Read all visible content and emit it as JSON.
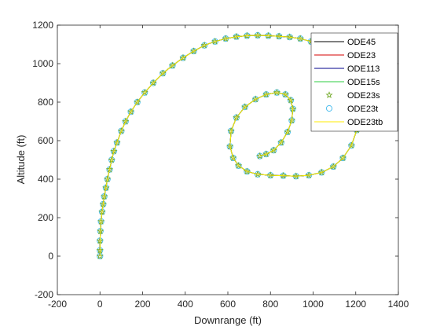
{
  "chart_data": {
    "type": "line",
    "title": "",
    "xlabel": "Downrange (ft)",
    "ylabel": "Altitude (ft)",
    "xlim": [
      -200,
      1400
    ],
    "ylim": [
      -200,
      1200
    ],
    "xticks": [
      "-200",
      "0",
      "200",
      "400",
      "600",
      "800",
      "1000",
      "1200",
      "1400"
    ],
    "yticks": [
      "-200",
      "0",
      "200",
      "400",
      "600",
      "800",
      "1000",
      "1200"
    ],
    "grid": false,
    "legend_position": "top-right",
    "x": [
      0,
      0,
      0,
      2,
      5,
      10,
      15,
      20,
      28,
      35,
      45,
      55,
      65,
      80,
      100,
      120,
      145,
      175,
      210,
      250,
      295,
      340,
      390,
      440,
      490,
      540,
      590,
      640,
      690,
      740,
      790,
      840,
      890,
      940,
      990,
      1040,
      1090,
      1140,
      1180,
      1210,
      1215,
      1205,
      1180,
      1140,
      1095,
      1040,
      980,
      920,
      860,
      800,
      740,
      690,
      650,
      625,
      610,
      615,
      640,
      680,
      730,
      780,
      830,
      870,
      895,
      905,
      900,
      880,
      850,
      815,
      780,
      750
    ],
    "series": [
      {
        "name": "ODE45",
        "color": "#000000",
        "style": "line",
        "y": [
          0,
          30,
          80,
          130,
          180,
          230,
          270,
          310,
          355,
          400,
          450,
          500,
          545,
          590,
          650,
          700,
          750,
          800,
          850,
          900,
          950,
          990,
          1030,
          1065,
          1095,
          1115,
          1130,
          1140,
          1145,
          1147,
          1145,
          1142,
          1138,
          1130,
          1115,
          1095,
          1060,
          1005,
          930,
          840,
          745,
          655,
          575,
          510,
          465,
          435,
          420,
          415,
          418,
          420,
          425,
          440,
          470,
          510,
          570,
          650,
          720,
          775,
          815,
          840,
          850,
          840,
          810,
          765,
          705,
          645,
          590,
          550,
          530,
          520
        ]
      },
      {
        "name": "ODE23",
        "color": "#d40000",
        "style": "line",
        "y": [
          0,
          30,
          80,
          130,
          180,
          230,
          270,
          310,
          355,
          400,
          450,
          500,
          545,
          590,
          650,
          700,
          750,
          800,
          850,
          900,
          950,
          990,
          1030,
          1065,
          1095,
          1115,
          1130,
          1140,
          1145,
          1147,
          1145,
          1142,
          1138,
          1130,
          1115,
          1095,
          1060,
          1005,
          930,
          840,
          745,
          655,
          575,
          510,
          465,
          435,
          420,
          415,
          418,
          420,
          425,
          440,
          470,
          510,
          570,
          650,
          720,
          775,
          815,
          840,
          850,
          840,
          810,
          765,
          705,
          645,
          590,
          550,
          530,
          520
        ]
      },
      {
        "name": "ODE113",
        "color": "#00008b",
        "style": "line",
        "y": [
          0,
          30,
          80,
          130,
          180,
          230,
          270,
          310,
          355,
          400,
          450,
          500,
          545,
          590,
          650,
          700,
          750,
          800,
          850,
          900,
          950,
          990,
          1030,
          1065,
          1095,
          1115,
          1130,
          1140,
          1145,
          1147,
          1145,
          1142,
          1138,
          1130,
          1115,
          1095,
          1060,
          1005,
          930,
          840,
          745,
          655,
          575,
          510,
          465,
          435,
          420,
          415,
          418,
          420,
          425,
          440,
          470,
          510,
          570,
          650,
          720,
          775,
          815,
          840,
          850,
          840,
          810,
          765,
          705,
          645,
          590,
          550,
          530,
          520
        ]
      },
      {
        "name": "ODE15s",
        "color": "#2ecc40",
        "style": "line",
        "y": [
          0,
          30,
          80,
          130,
          180,
          230,
          270,
          310,
          355,
          400,
          450,
          500,
          545,
          590,
          650,
          700,
          750,
          800,
          850,
          900,
          950,
          990,
          1030,
          1065,
          1095,
          1115,
          1130,
          1140,
          1145,
          1147,
          1145,
          1142,
          1138,
          1130,
          1115,
          1095,
          1060,
          1005,
          930,
          840,
          745,
          655,
          575,
          510,
          465,
          435,
          420,
          415,
          418,
          420,
          425,
          440,
          470,
          510,
          570,
          650,
          720,
          775,
          815,
          840,
          850,
          840,
          810,
          765,
          705,
          645,
          590,
          550,
          530,
          520
        ]
      },
      {
        "name": "ODE23s",
        "color": "#77ac30",
        "style": "star",
        "y": [
          0,
          30,
          80,
          130,
          180,
          230,
          270,
          310,
          355,
          400,
          450,
          500,
          545,
          590,
          650,
          700,
          750,
          800,
          850,
          900,
          950,
          990,
          1030,
          1065,
          1095,
          1115,
          1130,
          1140,
          1145,
          1147,
          1145,
          1142,
          1138,
          1130,
          1115,
          1095,
          1060,
          1005,
          930,
          840,
          745,
          655,
          575,
          510,
          465,
          435,
          420,
          415,
          418,
          420,
          425,
          440,
          470,
          510,
          570,
          650,
          720,
          775,
          815,
          840,
          850,
          840,
          810,
          765,
          705,
          645,
          590,
          550,
          530,
          520
        ]
      },
      {
        "name": "ODE23t",
        "color": "#4dbeee",
        "style": "circle",
        "y": [
          0,
          30,
          80,
          130,
          180,
          230,
          270,
          310,
          355,
          400,
          450,
          500,
          545,
          590,
          650,
          700,
          750,
          800,
          850,
          900,
          950,
          990,
          1030,
          1065,
          1095,
          1115,
          1130,
          1140,
          1145,
          1147,
          1145,
          1142,
          1138,
          1130,
          1115,
          1095,
          1060,
          1005,
          930,
          840,
          745,
          655,
          575,
          510,
          465,
          435,
          420,
          415,
          418,
          420,
          425,
          440,
          470,
          510,
          570,
          650,
          720,
          775,
          815,
          840,
          850,
          840,
          810,
          765,
          705,
          645,
          590,
          550,
          530,
          520
        ]
      },
      {
        "name": "ODE23tb",
        "color": "#ffee00",
        "style": "line",
        "y": [
          0,
          30,
          80,
          130,
          180,
          230,
          270,
          310,
          355,
          400,
          450,
          500,
          545,
          590,
          650,
          700,
          750,
          800,
          850,
          900,
          950,
          990,
          1030,
          1065,
          1095,
          1115,
          1130,
          1140,
          1145,
          1147,
          1145,
          1142,
          1138,
          1130,
          1115,
          1095,
          1060,
          1005,
          930,
          840,
          745,
          655,
          575,
          510,
          465,
          435,
          420,
          415,
          418,
          420,
          425,
          440,
          470,
          510,
          570,
          650,
          720,
          775,
          815,
          840,
          850,
          840,
          810,
          765,
          705,
          645,
          590,
          550,
          530,
          520
        ]
      }
    ]
  }
}
